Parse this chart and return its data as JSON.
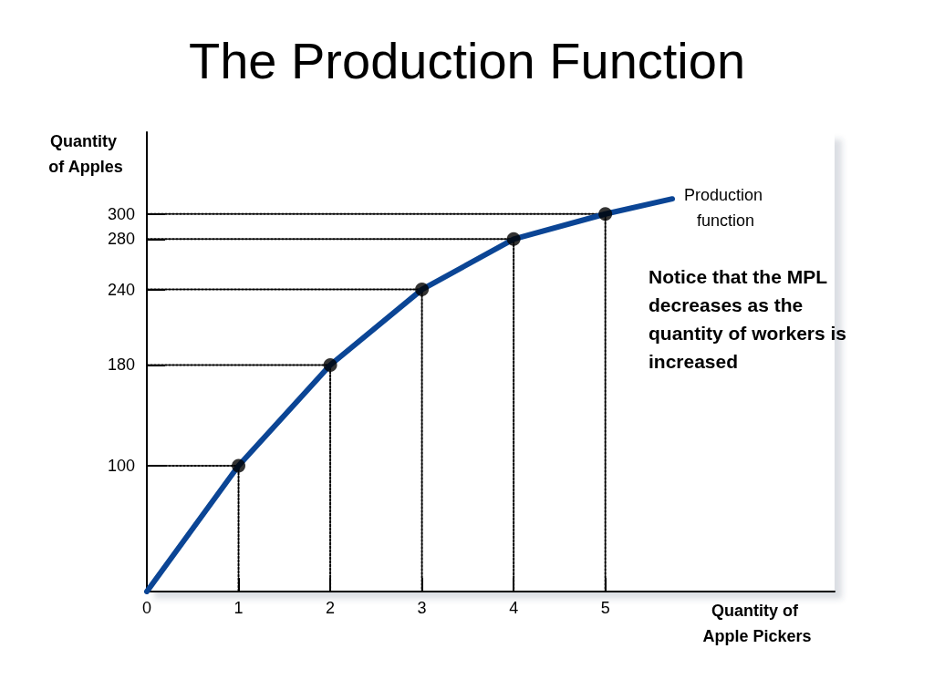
{
  "chart_data": {
    "type": "line",
    "title": "The Production Function",
    "xlabel": "Quantity of Apple Pickers",
    "ylabel": "Quantity of Apples",
    "annotations": [
      "Notice that the MPL decreases as the quantity of workers is increased"
    ],
    "series": [
      {
        "name": "Production function",
        "color": "#0b4595",
        "x": [
          0,
          1,
          2,
          3,
          4,
          5,
          5.73
        ],
        "values": [
          0,
          100,
          180,
          240,
          280,
          300,
          312
        ],
        "marker": "none",
        "line_style": "solid"
      },
      {
        "type": "scatter",
        "color": "#000000",
        "x": [
          1,
          2,
          3,
          4,
          5
        ],
        "values": [
          100,
          180,
          240,
          280,
          300
        ],
        "marker": "circle"
      },
      {
        "color": "#000000",
        "x": [
          0,
          1,
          1
        ],
        "values": [
          100,
          100,
          0
        ],
        "marker": "none",
        "line_style": "dotted"
      },
      {
        "color": "#000000",
        "x": [
          0,
          2,
          2
        ],
        "values": [
          180,
          180,
          0
        ],
        "marker": "none",
        "line_style": "dotted"
      },
      {
        "color": "#000000",
        "x": [
          0,
          3,
          3
        ],
        "values": [
          240,
          240,
          0
        ],
        "marker": "none",
        "line_style": "dotted"
      },
      {
        "color": "#000000",
        "x": [
          0,
          4,
          4
        ],
        "values": [
          280,
          280,
          0
        ],
        "marker": "none",
        "line_style": "dotted"
      },
      {
        "color": "#000000",
        "x": [
          0,
          5,
          5
        ],
        "values": [
          300,
          300,
          0
        ],
        "marker": "none",
        "line_style": "dotted"
      }
    ],
    "xlim": [
      0,
      7.5
    ],
    "ylim": [
      0,
      365
    ],
    "xticks": [
      0,
      1,
      2,
      3,
      4,
      5
    ],
    "yticks": [
      100,
      180,
      240,
      280,
      300
    ],
    "grid": false,
    "legend": false
  }
}
